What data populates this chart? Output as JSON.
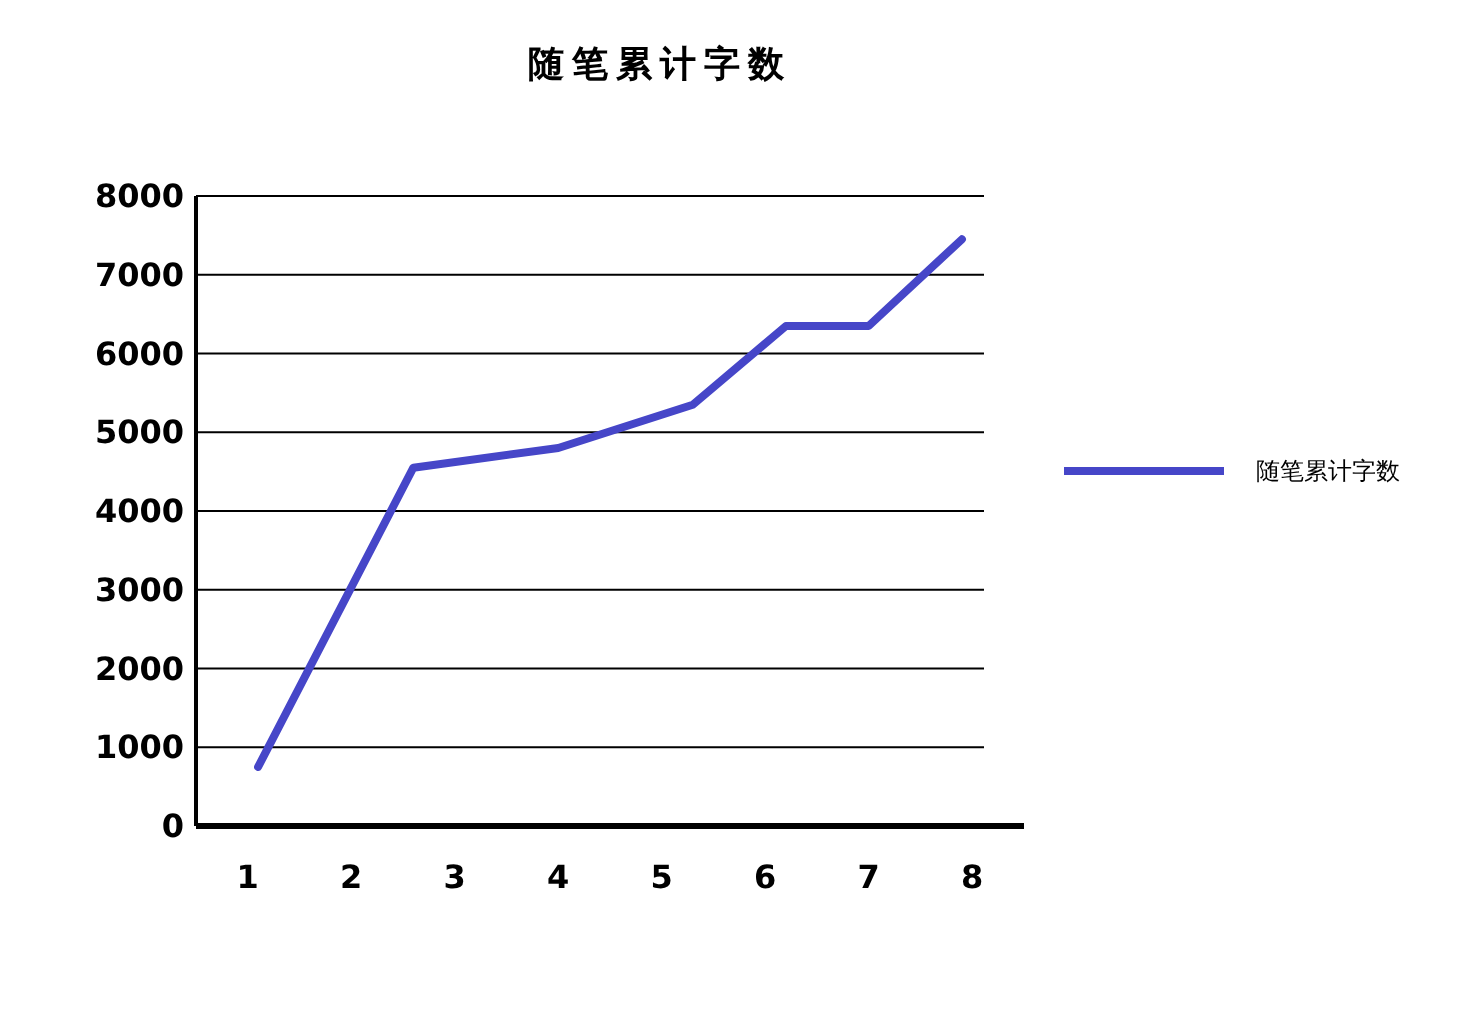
{
  "chart_data": {
    "type": "line",
    "title": "随笔累计字数",
    "x": [
      1.1,
      2.6,
      4,
      5.3,
      6.2,
      7,
      7.9
    ],
    "series": [
      {
        "name": "随笔累计字数",
        "color": "#4646c8",
        "values": [
          750,
          4550,
          4800,
          5350,
          6350,
          6350,
          7450
        ]
      }
    ],
    "xlim": [
      0.5,
      8.5
    ],
    "xticks": [
      1,
      2,
      3,
      4,
      5,
      6,
      7,
      8
    ],
    "ylim": [
      0,
      8000
    ],
    "yticks": [
      0,
      1000,
      2000,
      3000,
      4000,
      5000,
      6000,
      7000,
      8000
    ],
    "grid": "y",
    "legend": "right",
    "marker": "none",
    "line_style": "solid"
  }
}
